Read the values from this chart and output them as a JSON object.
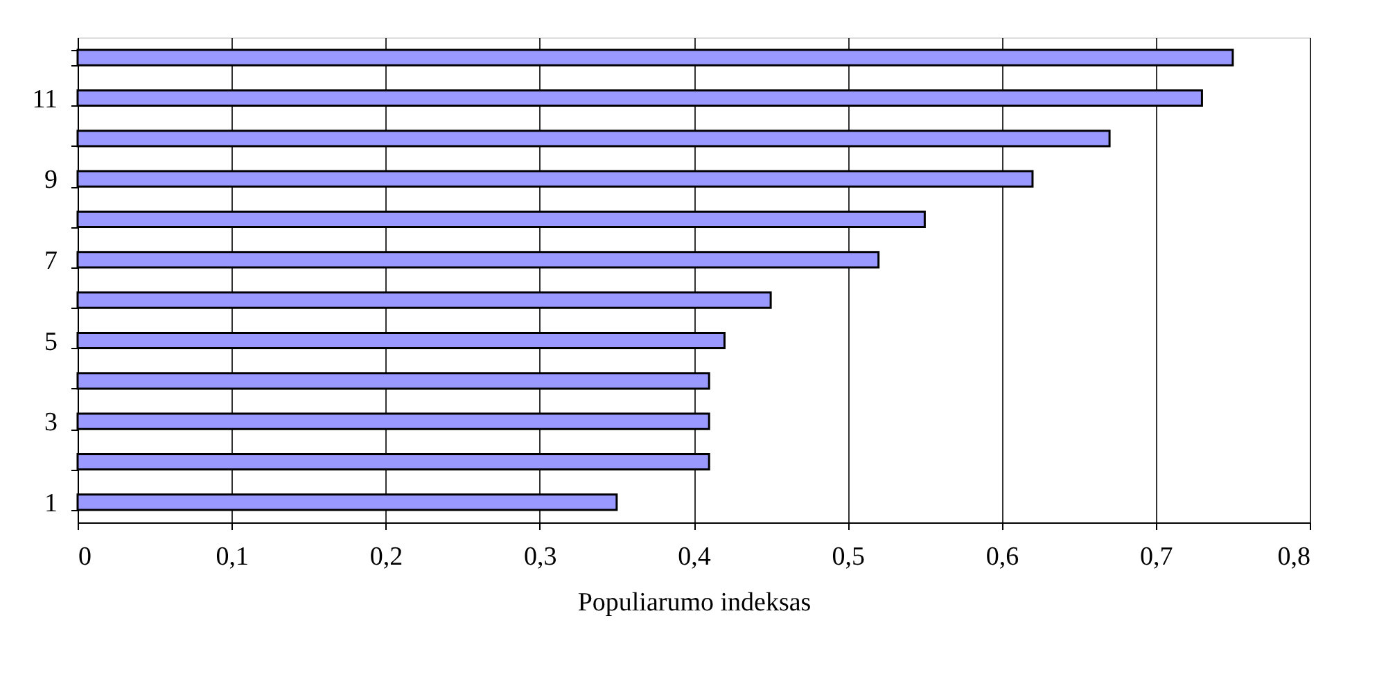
{
  "chart_data": {
    "type": "bar",
    "orientation": "horizontal",
    "xlabel": "Populiarumo indeksas",
    "categories": [
      null,
      "11",
      null,
      "9",
      null,
      "7",
      null,
      "5",
      null,
      "3",
      null,
      "1"
    ],
    "values": [
      0.75,
      0.73,
      0.67,
      0.62,
      0.55,
      0.52,
      0.45,
      0.42,
      0.41,
      0.41,
      0.41,
      0.35
    ],
    "color": "#9999ff",
    "xlim": [
      0,
      0.8
    ],
    "xticks": [
      {
        "value": 0,
        "label": "0"
      },
      {
        "value": 0.1,
        "label": "0,1"
      },
      {
        "value": 0.2,
        "label": "0,2"
      },
      {
        "value": 0.3,
        "label": "0,3"
      },
      {
        "value": 0.4,
        "label": "0,4"
      },
      {
        "value": 0.5,
        "label": "0,5"
      },
      {
        "value": 0.6,
        "label": "0,6"
      },
      {
        "value": 0.7,
        "label": "0,7"
      },
      {
        "value": 0.8,
        "label": "0,8"
      }
    ],
    "grid": "x"
  }
}
